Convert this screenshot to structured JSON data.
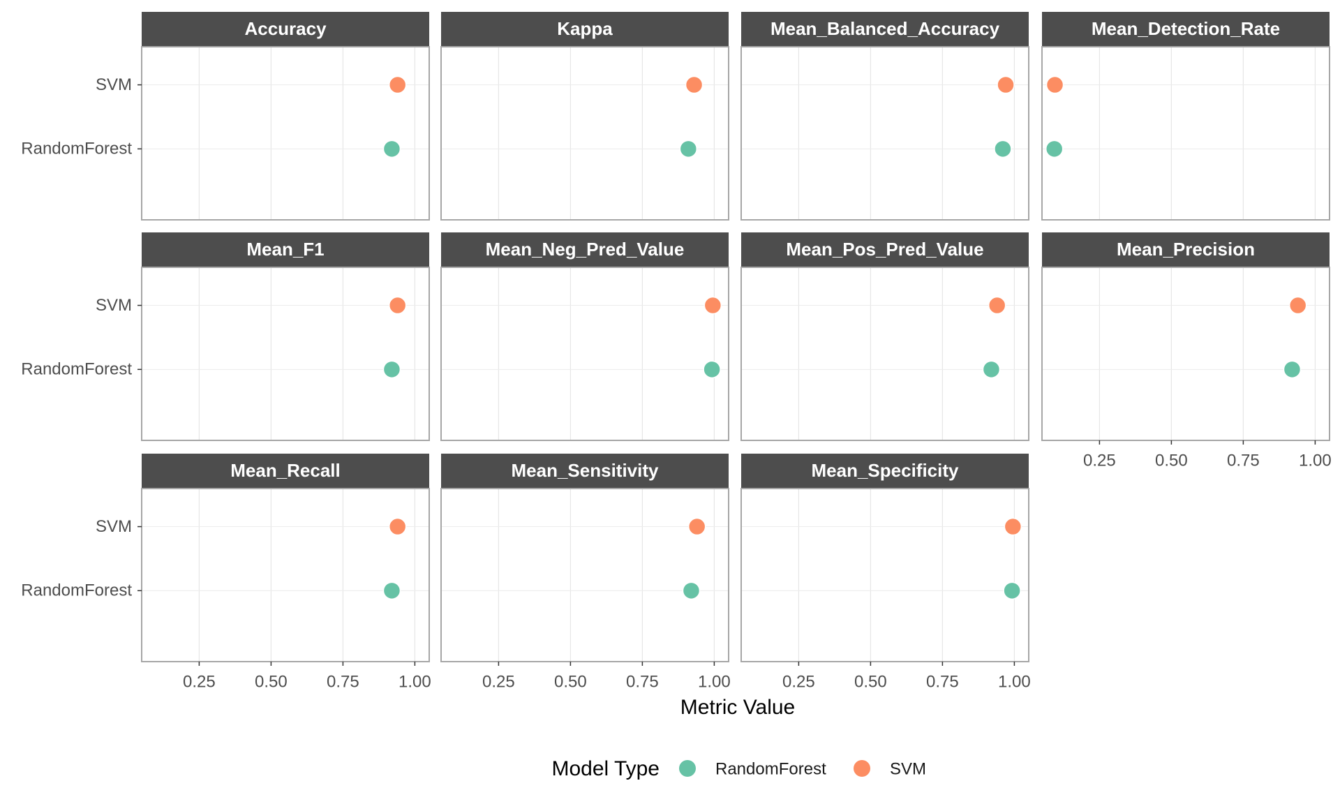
{
  "chart_data": {
    "type": "scatter",
    "xlabel": "Metric Value",
    "ylabel": "",
    "xlim": [
      0.05,
      1.05
    ],
    "x_ticks": [
      0.25,
      0.5,
      0.75,
      1.0
    ],
    "x_tick_labels": [
      "0.25",
      "0.50",
      "0.75",
      "1.00"
    ],
    "categories": [
      "SVM",
      "RandomForest"
    ],
    "legend": {
      "title": "Model Type",
      "placement": "bottom",
      "entries": [
        {
          "name": "RandomForest",
          "color": "#66c2a5"
        },
        {
          "name": "SVM",
          "color": "#fc8d62"
        }
      ]
    },
    "grid": true,
    "facets": [
      {
        "title": "Accuracy",
        "points": [
          {
            "model": "SVM",
            "value": 0.94
          },
          {
            "model": "RandomForest",
            "value": 0.92
          }
        ]
      },
      {
        "title": "Kappa",
        "points": [
          {
            "model": "SVM",
            "value": 0.93
          },
          {
            "model": "RandomForest",
            "value": 0.91
          }
        ]
      },
      {
        "title": "Mean_Balanced_Accuracy",
        "points": [
          {
            "model": "SVM",
            "value": 0.97
          },
          {
            "model": "RandomForest",
            "value": 0.96
          }
        ]
      },
      {
        "title": "Mean_Detection_Rate",
        "points": [
          {
            "model": "SVM",
            "value": 0.095
          },
          {
            "model": "RandomForest",
            "value": 0.093
          }
        ]
      },
      {
        "title": "Mean_F1",
        "points": [
          {
            "model": "SVM",
            "value": 0.94
          },
          {
            "model": "RandomForest",
            "value": 0.92
          }
        ]
      },
      {
        "title": "Mean_Neg_Pred_Value",
        "points": [
          {
            "model": "SVM",
            "value": 0.995
          },
          {
            "model": "RandomForest",
            "value": 0.992
          }
        ]
      },
      {
        "title": "Mean_Pos_Pred_Value",
        "points": [
          {
            "model": "SVM",
            "value": 0.94
          },
          {
            "model": "RandomForest",
            "value": 0.92
          }
        ]
      },
      {
        "title": "Mean_Precision",
        "points": [
          {
            "model": "SVM",
            "value": 0.94
          },
          {
            "model": "RandomForest",
            "value": 0.92
          }
        ]
      },
      {
        "title": "Mean_Recall",
        "points": [
          {
            "model": "SVM",
            "value": 0.94
          },
          {
            "model": "RandomForest",
            "value": 0.92
          }
        ]
      },
      {
        "title": "Mean_Sensitivity",
        "points": [
          {
            "model": "SVM",
            "value": 0.94
          },
          {
            "model": "RandomForest",
            "value": 0.92
          }
        ]
      },
      {
        "title": "Mean_Specificity",
        "points": [
          {
            "model": "SVM",
            "value": 0.995
          },
          {
            "model": "RandomForest",
            "value": 0.992
          }
        ]
      }
    ]
  }
}
